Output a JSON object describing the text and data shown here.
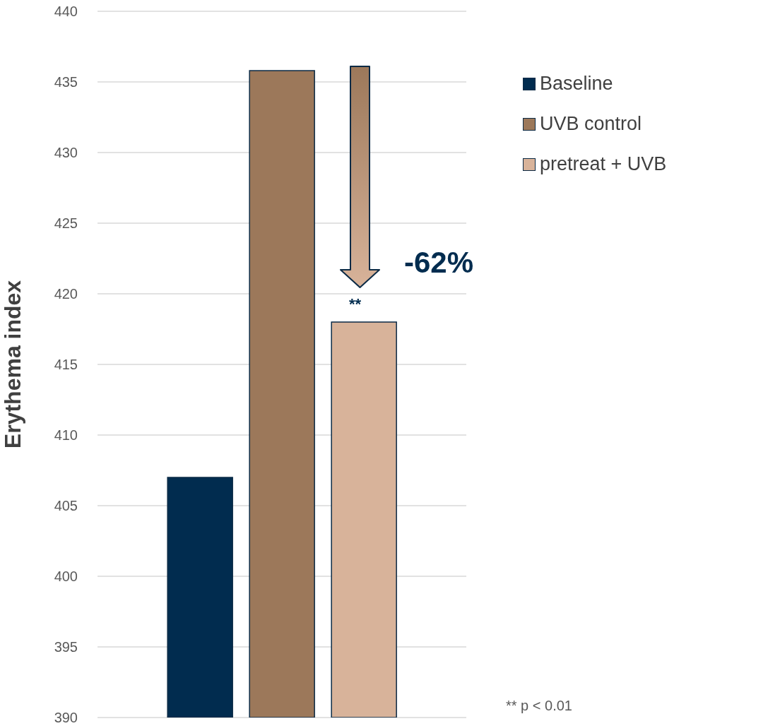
{
  "chart_data": {
    "type": "bar",
    "categories": [
      null
    ],
    "series": [
      {
        "name": "Baseline",
        "color": "#012c4f",
        "values": [
          407
        ]
      },
      {
        "name": "UVB control",
        "color": "#9c785a",
        "values": [
          435.8
        ]
      },
      {
        "name": "pretreat + UVB",
        "color": "#d8b39a",
        "values": [
          418
        ]
      }
    ],
    "ylabel": "Erythema index",
    "ylim": [
      390,
      440
    ],
    "yticks": [
      390,
      395,
      400,
      405,
      410,
      415,
      420,
      425,
      430,
      435,
      440
    ],
    "grid": "y",
    "legend": "top right",
    "annotations": [
      "-62%",
      "**",
      "** p < 0.01"
    ]
  }
}
